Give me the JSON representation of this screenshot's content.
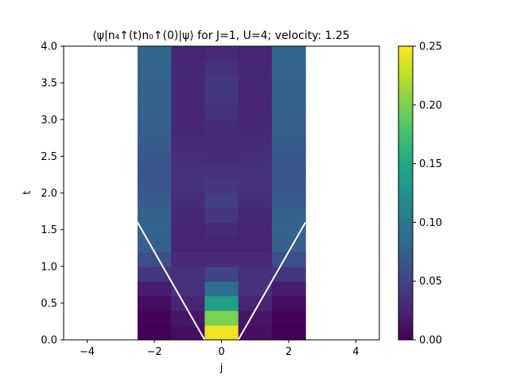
{
  "chart_data": {
    "type": "heatmap",
    "title": "⟨ψ|n₄↑(t)n₀↑(0)|ψ⟩ for J=1, U=4; velocity: 1.25",
    "xlabel": "j",
    "ylabel": "t",
    "xlim": [
      -4.7,
      4.7
    ],
    "ylim": [
      0,
      4.0
    ],
    "xticks": [
      -4,
      -2,
      0,
      2,
      4
    ],
    "xtick_labels": [
      "−4",
      "−2",
      "0",
      "2",
      "4"
    ],
    "yticks": [
      0,
      0.5,
      1.0,
      1.5,
      2.0,
      2.5,
      3.0,
      3.5,
      4.0
    ],
    "ytick_labels": [
      "0.0",
      "0.5",
      "1.0",
      "1.5",
      "2.0",
      "2.5",
      "3.0",
      "3.5",
      "4.0"
    ],
    "columns_j": [
      -2,
      -1,
      0,
      1,
      2
    ],
    "t_rows": [
      0.0,
      0.2,
      0.4,
      0.6,
      0.8,
      1.0,
      1.2,
      1.4,
      1.6,
      1.8,
      2.0,
      2.2,
      2.4,
      2.6,
      2.8,
      3.0,
      3.2,
      3.4,
      3.6,
      3.8
    ],
    "values": [
      [
        0.0,
        0.01,
        0.245,
        0.01,
        0.0
      ],
      [
        0.002,
        0.015,
        0.2,
        0.015,
        0.002
      ],
      [
        0.008,
        0.025,
        0.14,
        0.025,
        0.008
      ],
      [
        0.02,
        0.035,
        0.09,
        0.035,
        0.02
      ],
      [
        0.04,
        0.035,
        0.05,
        0.035,
        0.04
      ],
      [
        0.06,
        0.03,
        0.03,
        0.03,
        0.06
      ],
      [
        0.075,
        0.025,
        0.025,
        0.025,
        0.075
      ],
      [
        0.08,
        0.025,
        0.03,
        0.025,
        0.08
      ],
      [
        0.078,
        0.028,
        0.04,
        0.028,
        0.078
      ],
      [
        0.072,
        0.032,
        0.045,
        0.032,
        0.072
      ],
      [
        0.068,
        0.035,
        0.04,
        0.035,
        0.068
      ],
      [
        0.066,
        0.035,
        0.035,
        0.035,
        0.066
      ],
      [
        0.068,
        0.033,
        0.032,
        0.033,
        0.068
      ],
      [
        0.072,
        0.03,
        0.03,
        0.03,
        0.072
      ],
      [
        0.076,
        0.028,
        0.032,
        0.028,
        0.076
      ],
      [
        0.078,
        0.027,
        0.036,
        0.027,
        0.078
      ],
      [
        0.078,
        0.027,
        0.04,
        0.027,
        0.078
      ],
      [
        0.078,
        0.028,
        0.04,
        0.028,
        0.078
      ],
      [
        0.08,
        0.028,
        0.035,
        0.028,
        0.08
      ],
      [
        0.083,
        0.025,
        0.03,
        0.025,
        0.083
      ]
    ],
    "light_cone": {
      "velocity": 1.25,
      "left": [
        [
          -0.5,
          0.0
        ],
        [
          -2.5,
          1.6
        ]
      ],
      "right": [
        [
          0.5,
          0.0
        ],
        [
          2.5,
          1.6
        ]
      ],
      "color": "#ffffff"
    },
    "colorbar": {
      "colormap": "viridis",
      "range": [
        0.0,
        0.25
      ],
      "ticks": [
        0.0,
        0.05,
        0.1,
        0.15,
        0.2,
        0.25
      ],
      "tick_labels": [
        "0.00",
        "0.05",
        "0.10",
        "0.15",
        "0.20",
        "0.25"
      ]
    },
    "grid": false
  }
}
